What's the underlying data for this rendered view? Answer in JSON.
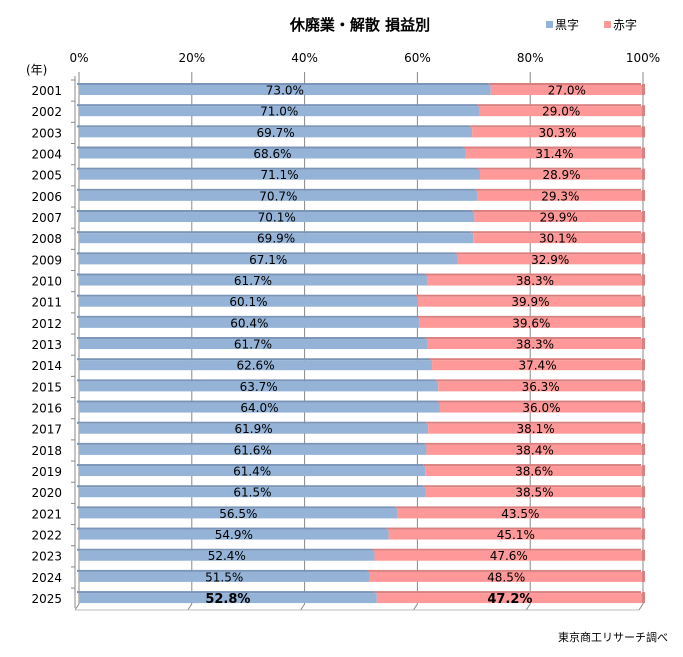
{
  "chart_data": {
    "type": "bar",
    "orientation": "horizontal",
    "stacked": "percent",
    "title": "休廃業・解散 損益別",
    "ylabel": "(年)",
    "categories": [
      "2001",
      "2002",
      "2003",
      "2004",
      "2005",
      "2006",
      "2007",
      "2008",
      "2009",
      "2010",
      "2011",
      "2012",
      "2013",
      "2014",
      "2015",
      "2016",
      "2017",
      "2018",
      "2019",
      "2020",
      "2021",
      "2022",
      "2023",
      "2024",
      "2025"
    ],
    "series": [
      {
        "name": "黒字",
        "color": "#95B3D7",
        "values": [
          73.0,
          71.0,
          69.7,
          68.6,
          71.1,
          70.7,
          70.1,
          69.9,
          67.1,
          61.7,
          60.1,
          60.4,
          61.7,
          62.6,
          63.7,
          64.0,
          61.9,
          61.6,
          61.4,
          61.5,
          56.5,
          54.9,
          52.4,
          51.5,
          52.8
        ]
      },
      {
        "name": "赤字",
        "color": "#FF9999",
        "values": [
          27.0,
          29.0,
          30.3,
          31.4,
          28.9,
          29.3,
          29.9,
          30.1,
          32.9,
          38.3,
          39.9,
          39.6,
          38.3,
          37.4,
          36.3,
          36.0,
          38.1,
          38.4,
          38.6,
          38.5,
          43.5,
          45.1,
          47.6,
          48.5,
          47.2
        ]
      }
    ],
    "xlim": [
      0,
      100
    ],
    "xticks": [
      "0%",
      "20%",
      "40%",
      "60%",
      "80%",
      "100%"
    ],
    "xaxis_position": "top",
    "grid": true,
    "legend": "top-right",
    "highlight_category": "2025",
    "source": "東京商工リサーチ調べ"
  }
}
